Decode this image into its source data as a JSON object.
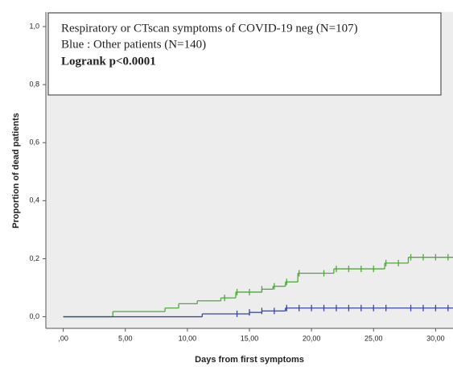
{
  "chart_data": {
    "type": "step",
    "xlabel": "Days from first symptoms",
    "ylabel": "Proportion of dead patients",
    "annotation": "Logrank p<0.0001",
    "xlim": [
      -1.4,
      31.4
    ],
    "ylim": [
      -0.04,
      1.05
    ],
    "xticks": [
      {
        "value": 0,
        "label": ",00"
      },
      {
        "value": 5,
        "label": "5,00"
      },
      {
        "value": 10,
        "label": "10,00"
      },
      {
        "value": 15,
        "label": "15,00"
      },
      {
        "value": 20,
        "label": "20,00"
      },
      {
        "value": 25,
        "label": "25,00"
      },
      {
        "value": 30,
        "label": "30,00"
      }
    ],
    "yticks": [
      {
        "value": 0,
        "label": "0,0"
      },
      {
        "value": 0.2,
        "label": "0,2"
      },
      {
        "value": 0.4,
        "label": "0,4"
      },
      {
        "value": 0.6,
        "label": "0,6"
      },
      {
        "value": 0.8,
        "label": "0,8"
      },
      {
        "value": 1,
        "label": "1,0"
      }
    ],
    "series": [
      {
        "name": "Respiratory or CTscan symptoms of COVID-19 neg (N=107)",
        "color": "#4ea83a",
        "x": [
          0,
          4,
          8.2,
          9.3,
          10.8,
          12.7,
          13.9,
          16,
          16.9,
          17.9,
          18.9,
          21.8,
          25.9,
          27.8
        ],
        "values": [
          0,
          0.018,
          0.03,
          0.045,
          0.055,
          0.065,
          0.085,
          0.095,
          0.105,
          0.12,
          0.15,
          0.165,
          0.185,
          0.205
        ],
        "censor_x": [
          13,
          14,
          15,
          16,
          17,
          18,
          19,
          21,
          22,
          23,
          24,
          25,
          26,
          27,
          28,
          29,
          30,
          31
        ],
        "censor_values": [
          0.065,
          0.085,
          0.085,
          0.095,
          0.105,
          0.12,
          0.15,
          0.15,
          0.165,
          0.165,
          0.165,
          0.165,
          0.185,
          0.185,
          0.205,
          0.205,
          0.205,
          0.205
        ]
      },
      {
        "name": "Blue : Other patients (N=140)",
        "color": "#3a46a0",
        "x": [
          0,
          11.2,
          15,
          16,
          17.9
        ],
        "values": [
          0,
          0.01,
          0.015,
          0.02,
          0.03
        ],
        "censor_x": [
          14,
          15,
          16,
          17,
          18,
          19,
          20,
          21,
          22,
          23,
          24,
          25,
          26,
          28,
          29,
          30,
          31
        ],
        "censor_values": [
          0.01,
          0.015,
          0.02,
          0.02,
          0.03,
          0.03,
          0.03,
          0.03,
          0.03,
          0.03,
          0.03,
          0.03,
          0.03,
          0.03,
          0.03,
          0.03,
          0.03
        ]
      }
    ]
  }
}
